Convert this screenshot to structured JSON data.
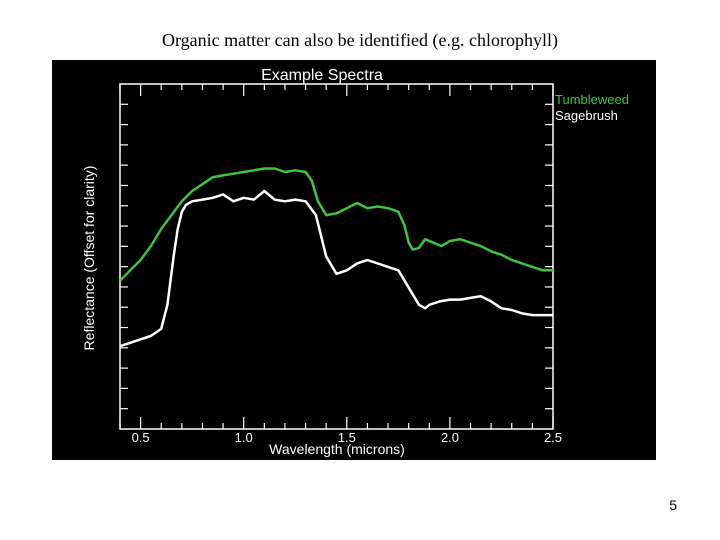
{
  "slide": {
    "title": "Organic matter can also be identified (e.g. chlorophyll)",
    "page_number": "5"
  },
  "chart_data": {
    "type": "line",
    "title": "Example Spectra",
    "xlabel": "Wavelength (microns)",
    "ylabel": "Reflectance (Offset for clarity)",
    "xlim": [
      0.4,
      2.5
    ],
    "ylim": [
      0,
      1
    ],
    "x_ticks": [
      "0.5",
      "1.0",
      "1.5",
      "2.0",
      "2.5"
    ],
    "x_tick_values": [
      0.5,
      1.0,
      1.5,
      2.0,
      2.5
    ],
    "grid": false,
    "background": "#000000",
    "axis_color": "#ffffff",
    "legend_position": "top-right",
    "series": [
      {
        "name": "Tumbleweed",
        "color": "#3ec43e",
        "x": [
          0.4,
          0.45,
          0.5,
          0.55,
          0.6,
          0.65,
          0.7,
          0.75,
          0.8,
          0.85,
          0.9,
          0.95,
          1.0,
          1.05,
          1.1,
          1.15,
          1.2,
          1.25,
          1.3,
          1.33,
          1.36,
          1.4,
          1.45,
          1.5,
          1.55,
          1.6,
          1.65,
          1.7,
          1.75,
          1.78,
          1.8,
          1.82,
          1.85,
          1.88,
          1.92,
          1.96,
          2.0,
          2.05,
          2.1,
          2.15,
          2.2,
          2.25,
          2.3,
          2.35,
          2.4,
          2.45,
          2.5
        ],
        "y": [
          0.43,
          0.46,
          0.49,
          0.53,
          0.58,
          0.62,
          0.66,
          0.69,
          0.71,
          0.73,
          0.735,
          0.74,
          0.745,
          0.75,
          0.755,
          0.755,
          0.745,
          0.75,
          0.745,
          0.72,
          0.66,
          0.62,
          0.625,
          0.64,
          0.655,
          0.64,
          0.645,
          0.64,
          0.63,
          0.59,
          0.54,
          0.52,
          0.525,
          0.55,
          0.54,
          0.53,
          0.545,
          0.55,
          0.54,
          0.53,
          0.515,
          0.505,
          0.49,
          0.48,
          0.47,
          0.46,
          0.46
        ]
      },
      {
        "name": "Sagebrush",
        "color": "#ffffff",
        "x": [
          0.4,
          0.45,
          0.5,
          0.55,
          0.6,
          0.63,
          0.66,
          0.68,
          0.7,
          0.72,
          0.75,
          0.8,
          0.85,
          0.9,
          0.95,
          1.0,
          1.05,
          1.1,
          1.15,
          1.2,
          1.25,
          1.3,
          1.35,
          1.4,
          1.45,
          1.5,
          1.55,
          1.6,
          1.65,
          1.7,
          1.75,
          1.8,
          1.85,
          1.88,
          1.9,
          1.95,
          2.0,
          2.05,
          2.1,
          2.15,
          2.2,
          2.25,
          2.3,
          2.35,
          2.4,
          2.45,
          2.5
        ],
        "y": [
          0.24,
          0.25,
          0.26,
          0.27,
          0.29,
          0.36,
          0.5,
          0.58,
          0.63,
          0.65,
          0.66,
          0.665,
          0.67,
          0.68,
          0.66,
          0.67,
          0.665,
          0.69,
          0.665,
          0.66,
          0.665,
          0.66,
          0.62,
          0.5,
          0.45,
          0.46,
          0.48,
          0.49,
          0.48,
          0.47,
          0.46,
          0.41,
          0.36,
          0.35,
          0.36,
          0.37,
          0.375,
          0.375,
          0.38,
          0.385,
          0.37,
          0.35,
          0.345,
          0.335,
          0.33,
          0.33,
          0.33
        ]
      }
    ]
  }
}
